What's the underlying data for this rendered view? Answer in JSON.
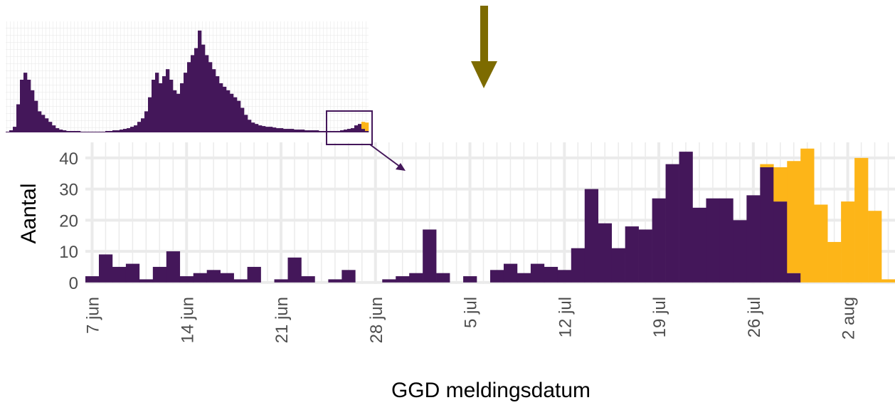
{
  "chart_data": [
    {
      "type": "bar",
      "stacked": true,
      "x_label": "GGD meldingsdatum",
      "y_label": "Aantal",
      "categories": [
        "7 jun",
        null,
        null,
        null,
        null,
        null,
        null,
        "14 jun",
        null,
        null,
        null,
        null,
        null,
        null,
        "21 jun",
        null,
        null,
        null,
        null,
        null,
        null,
        "28 jun",
        null,
        null,
        null,
        null,
        null,
        null,
        "5 jul",
        null,
        null,
        null,
        null,
        null,
        null,
        "12 jul",
        null,
        null,
        null,
        null,
        null,
        null,
        "19 jul",
        null,
        null,
        null,
        null,
        null,
        null,
        "26 jul",
        null,
        null,
        null,
        null,
        null,
        null,
        "2 aug",
        null,
        null,
        null
      ],
      "series": [
        {
          "color": "#44175a",
          "values": [
            2,
            9,
            5,
            6,
            1,
            5,
            10,
            2,
            3,
            4,
            3,
            1,
            5,
            0,
            1,
            8,
            2,
            0,
            1,
            4,
            0,
            0,
            1,
            2,
            3,
            17,
            3,
            0,
            2,
            0,
            4,
            6,
            3,
            6,
            5,
            4,
            11,
            30,
            19,
            11,
            18,
            17,
            27,
            38,
            42,
            24,
            27,
            27,
            20,
            28,
            37,
            26,
            3,
            0,
            0,
            0,
            0,
            0,
            0,
            0
          ]
        },
        {
          "color": "#fdb518",
          "values": [
            0,
            0,
            0,
            0,
            0,
            0,
            0,
            0,
            0,
            0,
            0,
            0,
            0,
            0,
            0,
            0,
            0,
            0,
            0,
            0,
            0,
            0,
            0,
            0,
            0,
            0,
            0,
            0,
            0,
            0,
            0,
            0,
            0,
            0,
            0,
            0,
            0,
            0,
            0,
            0,
            0,
            0,
            0,
            0,
            0,
            0,
            0,
            0,
            0,
            0,
            1,
            11,
            36,
            43,
            25,
            13,
            26,
            40,
            23,
            1
          ]
        }
      ],
      "ylim": [
        -0.5,
        45
      ],
      "yticks": [
        0,
        10,
        20,
        30,
        40
      ],
      "grid": true
    },
    {
      "type": "bar",
      "stacked": true,
      "series": [
        {
          "color": "#44175a",
          "values": [
            1,
            3,
            8,
            40,
            75,
            85,
            75,
            60,
            45,
            30,
            25,
            20,
            15,
            10,
            6,
            4,
            3,
            2,
            2,
            2,
            2,
            1,
            1,
            1,
            1,
            1,
            1,
            1,
            2,
            2,
            3,
            3,
            4,
            5,
            6,
            8,
            10,
            15,
            20,
            30,
            50,
            75,
            85,
            70,
            80,
            90,
            75,
            60,
            55,
            70,
            85,
            100,
            110,
            120,
            145,
            125,
            110,
            100,
            90,
            80,
            70,
            65,
            60,
            55,
            50,
            45,
            35,
            25,
            18,
            14,
            12,
            10,
            9,
            8,
            8,
            7,
            6,
            6,
            5,
            5,
            5,
            4,
            4,
            4,
            3,
            3,
            3,
            3,
            2,
            2,
            2,
            2,
            2,
            2,
            3,
            4,
            5,
            6,
            10,
            12,
            5,
            2
          ]
        },
        {
          "color": "#fdb518",
          "values": [
            0,
            0,
            0,
            0,
            0,
            0,
            0,
            0,
            0,
            0,
            0,
            0,
            0,
            0,
            0,
            0,
            0,
            0,
            0,
            0,
            0,
            0,
            0,
            0,
            0,
            0,
            0,
            0,
            0,
            0,
            0,
            0,
            0,
            0,
            0,
            0,
            0,
            0,
            0,
            0,
            0,
            0,
            0,
            0,
            0,
            0,
            0,
            0,
            0,
            0,
            0,
            0,
            0,
            0,
            0,
            0,
            0,
            0,
            0,
            0,
            0,
            0,
            0,
            0,
            0,
            0,
            0,
            0,
            0,
            0,
            0,
            0,
            0,
            0,
            0,
            0,
            0,
            0,
            0,
            0,
            0,
            0,
            0,
            0,
            0,
            0,
            0,
            0,
            0,
            0,
            0,
            0,
            0,
            0,
            0,
            0,
            0,
            0,
            0,
            0,
            10,
            12
          ]
        }
      ],
      "ylim": [
        0,
        150
      ]
    }
  ]
}
